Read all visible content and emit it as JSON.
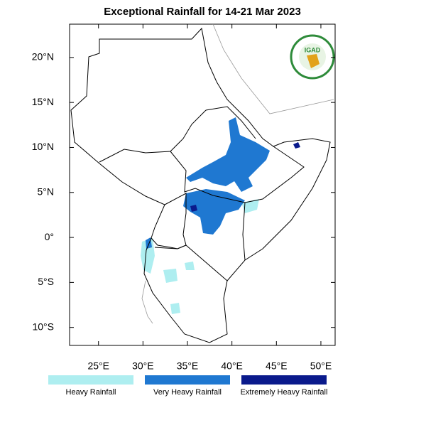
{
  "title": "Exceptional Rainfall for 14-21 Mar 2023",
  "map": {
    "lonlim": [
      21.75,
      51.6
    ],
    "latlim": [
      -12,
      23.7
    ],
    "lon_ticks": [
      {
        "value": 25,
        "label": "25°E"
      },
      {
        "value": 30,
        "label": "30°E"
      },
      {
        "value": 35,
        "label": "35°E"
      },
      {
        "value": 40,
        "label": "40°E"
      },
      {
        "value": 45,
        "label": "45°E"
      },
      {
        "value": 50,
        "label": "50°E"
      }
    ],
    "lat_ticks": [
      {
        "value": 20,
        "label": "20°N"
      },
      {
        "value": 15,
        "label": "15°N"
      },
      {
        "value": 10,
        "label": "10°N"
      },
      {
        "value": 5,
        "label": "5°N"
      },
      {
        "value": 0,
        "label": "0°"
      },
      {
        "value": -5,
        "label": "5°S"
      },
      {
        "value": -10,
        "label": "10°S"
      }
    ]
  },
  "legend": [
    {
      "label": "Heavy Rainfall",
      "color": "#aeeef0"
    },
    {
      "label": "Very Heavy Rainfall",
      "color": "#1f78d1"
    },
    {
      "label": "Extremely Heavy Rainfall",
      "color": "#0a1a8c"
    }
  ],
  "logo": {
    "text": "IGAD"
  }
}
